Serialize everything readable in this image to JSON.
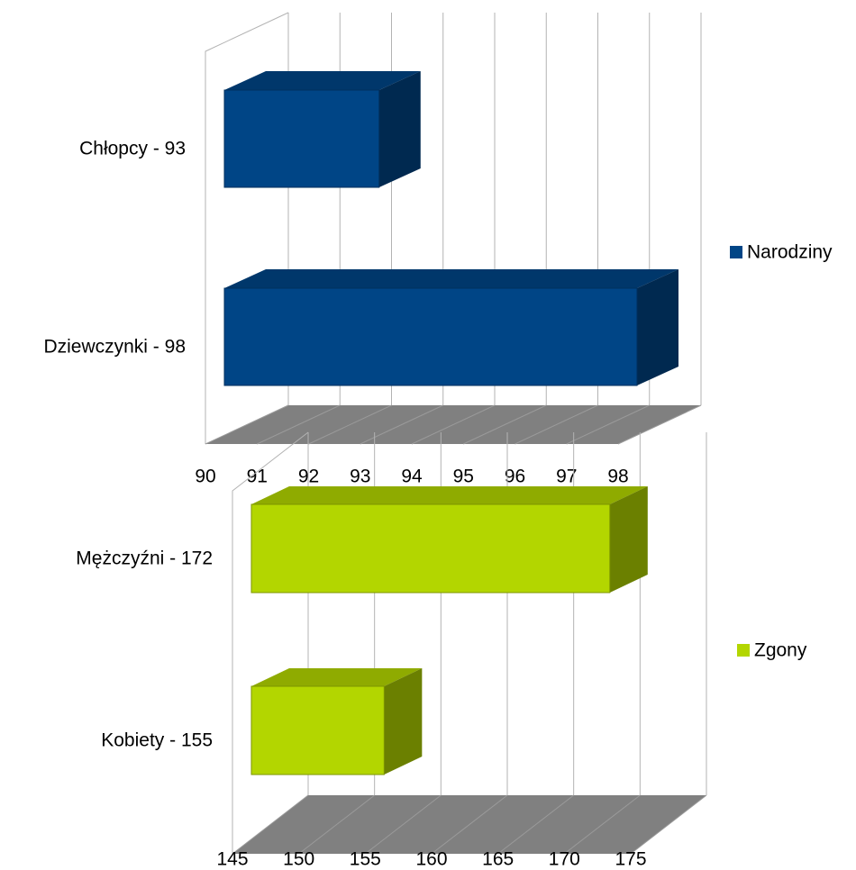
{
  "chart_data": [
    {
      "type": "bar3d",
      "categories": [
        "Chłopcy - 93",
        "Dziewczynki - 98"
      ],
      "series": [
        {
          "name": "Narodziny",
          "color": "#004586",
          "values": [
            93,
            98
          ]
        }
      ],
      "xlim": [
        90,
        98
      ],
      "xticks": [
        90,
        91,
        92,
        93,
        94,
        95,
        96,
        97,
        98
      ],
      "grid": true,
      "legend": "right"
    },
    {
      "type": "bar3d",
      "categories": [
        "Mężczyźni - 172",
        "Kobiety - 155"
      ],
      "series": [
        {
          "name": "Zgony",
          "color": "#b3d600",
          "values": [
            172,
            155
          ]
        }
      ],
      "xlim": [
        145,
        175
      ],
      "xticks": [
        145,
        150,
        155,
        160,
        165,
        170,
        175
      ],
      "grid": true,
      "legend": "right"
    }
  ]
}
